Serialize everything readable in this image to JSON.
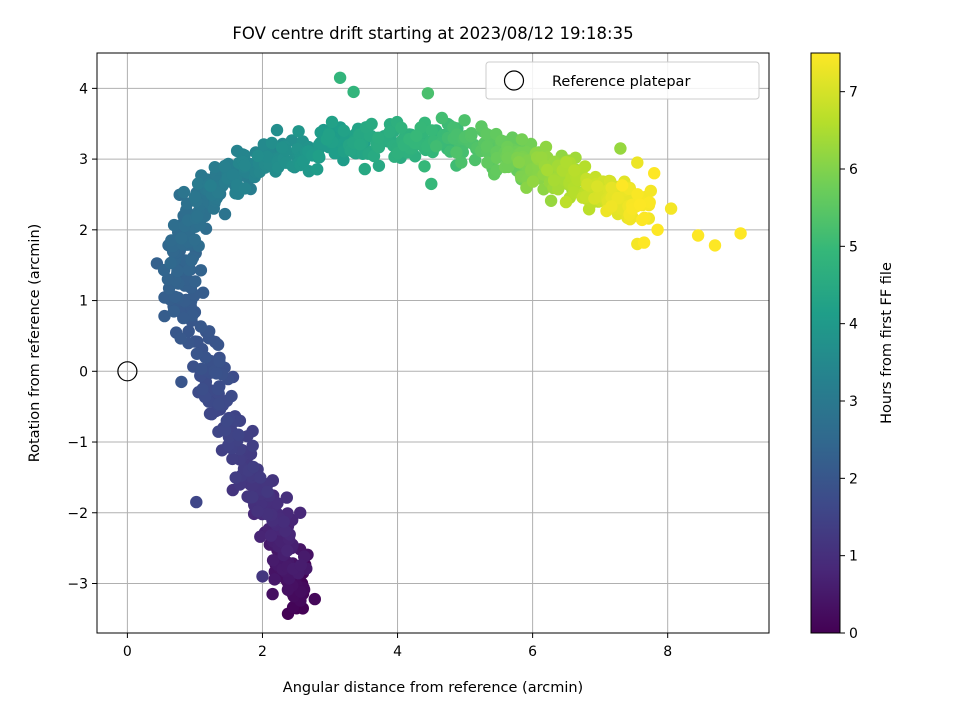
{
  "chart_data": {
    "type": "scatter",
    "title": "FOV centre drift starting at 2023/08/12 19:18:35",
    "xlabel": "Angular distance from reference (arcmin)",
    "ylabel": "Rotation from reference (arcmin)",
    "colorbar_label": "Hours from first FF file",
    "xlim": [
      -0.45,
      9.5
    ],
    "ylim": [
      -3.7,
      4.5
    ],
    "x_ticks": [
      0,
      2,
      4,
      6,
      8
    ],
    "y_ticks": [
      -3,
      -2,
      -1,
      0,
      1,
      2,
      3,
      4
    ],
    "colorbar_ticks": [
      0,
      1,
      2,
      3,
      4,
      5,
      6,
      7
    ],
    "colorbar_range": [
      0,
      7.5
    ],
    "grid": true,
    "colormap": "viridis",
    "legend": {
      "placement": "top-right",
      "entries": [
        "Reference platepar"
      ]
    },
    "reference_point": {
      "x": 0,
      "y": 0,
      "label": "Reference platepar"
    },
    "path_nodes": [
      {
        "h": 0.0,
        "x": 2.55,
        "y": -3.25
      },
      {
        "h": 0.5,
        "x": 2.35,
        "y": -2.7
      },
      {
        "h": 1.0,
        "x": 2.15,
        "y": -1.9
      },
      {
        "h": 1.3,
        "x": 1.8,
        "y": -1.4
      },
      {
        "h": 1.6,
        "x": 1.45,
        "y": -0.6
      },
      {
        "h": 1.85,
        "x": 1.2,
        "y": 0.0
      },
      {
        "h": 2.1,
        "x": 0.9,
        "y": 0.8
      },
      {
        "h": 2.4,
        "x": 0.75,
        "y": 1.5
      },
      {
        "h": 2.7,
        "x": 0.9,
        "y": 2.1
      },
      {
        "h": 3.0,
        "x": 1.25,
        "y": 2.55
      },
      {
        "h": 3.4,
        "x": 1.75,
        "y": 2.95
      },
      {
        "h": 3.8,
        "x": 2.45,
        "y": 3.05
      },
      {
        "h": 4.3,
        "x": 3.3,
        "y": 3.25
      },
      {
        "h": 4.8,
        "x": 4.2,
        "y": 3.25
      },
      {
        "h": 5.3,
        "x": 5.0,
        "y": 3.2
      },
      {
        "h": 5.8,
        "x": 5.7,
        "y": 3.05
      },
      {
        "h": 6.3,
        "x": 6.3,
        "y": 2.85
      },
      {
        "h": 6.8,
        "x": 6.85,
        "y": 2.6
      },
      {
        "h": 7.2,
        "x": 7.3,
        "y": 2.45
      },
      {
        "h": 7.5,
        "x": 7.6,
        "y": 2.35
      }
    ],
    "outliers": [
      {
        "x": 1.02,
        "y": -1.85,
        "h": 1.6
      },
      {
        "x": 2.0,
        "y": -2.9,
        "h": 1.2
      },
      {
        "x": 2.15,
        "y": -3.15,
        "h": 0.3
      },
      {
        "x": 3.15,
        "y": 4.15,
        "h": 4.9
      },
      {
        "x": 3.35,
        "y": 3.95,
        "h": 4.9
      },
      {
        "x": 4.45,
        "y": 3.93,
        "h": 5.3
      },
      {
        "x": 4.5,
        "y": 2.65,
        "h": 5.0
      },
      {
        "x": 7.3,
        "y": 3.15,
        "h": 6.3
      },
      {
        "x": 7.55,
        "y": 2.95,
        "h": 7.3
      },
      {
        "x": 7.8,
        "y": 2.8,
        "h": 7.5
      },
      {
        "x": 7.75,
        "y": 2.55,
        "h": 7.4
      },
      {
        "x": 8.05,
        "y": 2.3,
        "h": 7.4
      },
      {
        "x": 8.45,
        "y": 1.92,
        "h": 7.5
      },
      {
        "x": 8.7,
        "y": 1.78,
        "h": 7.5
      },
      {
        "x": 9.08,
        "y": 1.95,
        "h": 7.5
      },
      {
        "x": 7.55,
        "y": 1.8,
        "h": 7.4
      },
      {
        "x": 7.65,
        "y": 1.82,
        "h": 7.5
      },
      {
        "x": 7.85,
        "y": 2.0,
        "h": 7.5
      },
      {
        "x": 0.8,
        "y": -0.15,
        "h": 2.0
      },
      {
        "x": 0.6,
        "y": 1.3,
        "h": 2.4
      },
      {
        "x": 0.55,
        "y": 0.78,
        "h": 2.2
      },
      {
        "x": 0.65,
        "y": 1.85,
        "h": 2.6
      }
    ]
  }
}
